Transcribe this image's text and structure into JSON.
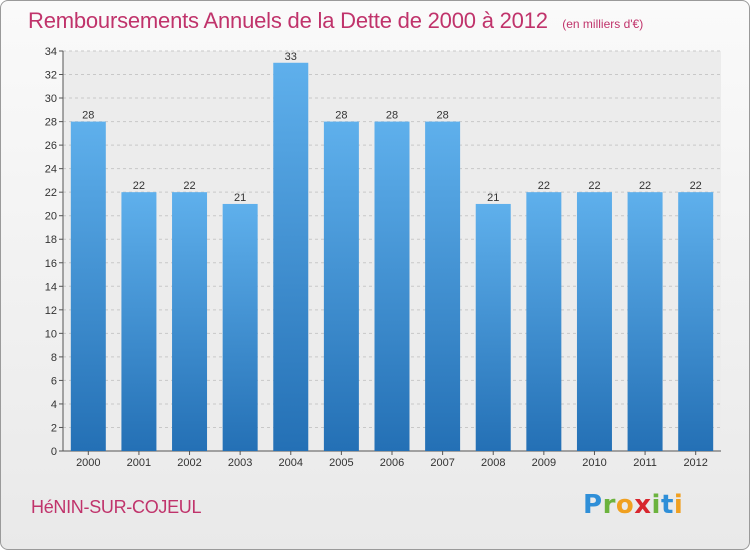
{
  "chart_data": {
    "type": "bar",
    "title": "Remboursements Annuels de la Dette de 2000 à 2012",
    "subtitle": "(en milliers d'€)",
    "categories": [
      "2000",
      "2001",
      "2002",
      "2003",
      "2004",
      "2005",
      "2006",
      "2007",
      "2008",
      "2009",
      "2010",
      "2011",
      "2012"
    ],
    "values": [
      28,
      22,
      22,
      21,
      33,
      28,
      28,
      28,
      21,
      22,
      22,
      22,
      22
    ],
    "ylim": [
      0,
      34
    ],
    "yticks": [
      0,
      2,
      4,
      6,
      8,
      10,
      12,
      14,
      16,
      18,
      20,
      22,
      24,
      26,
      28,
      30,
      32,
      34
    ],
    "grid": true,
    "xlabel": "",
    "ylabel": ""
  },
  "footer": {
    "commune": "HéNIN-SUR-COJEUL",
    "logo_letters": [
      "P",
      "r",
      "o",
      "x",
      "i",
      "t",
      "i"
    ],
    "logo_colors": [
      "#2f8fd8",
      "#6cb33e",
      "#f0a020",
      "#d8262e",
      "#6cb33e",
      "#2f8fd8",
      "#f0a020"
    ]
  },
  "colors": {
    "title": "#c0336b",
    "bar_top": "#5fb0ec",
    "bar_bottom": "#2470b5",
    "grid": "#c8c8c8"
  }
}
